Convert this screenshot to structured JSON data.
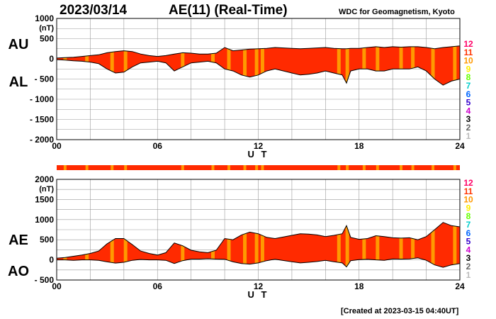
{
  "header": {
    "date": "2023/03/14",
    "index_title": "AE(11) (Real-Time)",
    "source": "WDC for Geomagnetism, Kyoto",
    "created": "[Created at 2023-03-15 04:40UT]"
  },
  "colors": {
    "fill_main": "#ff2a00",
    "fill_stripe": "#ff9900",
    "grid": "#9a9a9a",
    "line": "#000000"
  },
  "legend": {
    "items": [
      {
        "label": "12",
        "color": "#ff0066"
      },
      {
        "label": "11",
        "color": "#ff3300"
      },
      {
        "label": "10",
        "color": "#ff9900"
      },
      {
        "label": "9",
        "color": "#ffee00"
      },
      {
        "label": "8",
        "color": "#66ff00"
      },
      {
        "label": "7",
        "color": "#00cccc"
      },
      {
        "label": "6",
        "color": "#0066ff"
      },
      {
        "label": "5",
        "color": "#3300cc"
      },
      {
        "label": "4",
        "color": "#cc00cc"
      },
      {
        "label": "3",
        "color": "#000000"
      },
      {
        "label": "2",
        "color": "#666666"
      },
      {
        "label": "1",
        "color": "#bbbbbb"
      }
    ]
  },
  "chart_data": [
    {
      "type": "area",
      "series": [
        {
          "name": "AU"
        },
        {
          "name": "AL"
        }
      ],
      "side_labels": [
        "AU",
        "AL"
      ],
      "unit_label": "(nT)",
      "xlabel": "U T",
      "ylabel": "",
      "x_ticks": [
        "00",
        "06",
        "12",
        "18",
        "24"
      ],
      "y_ticks": [
        "1000",
        "500",
        "0",
        "- 500",
        "- 1000",
        "- 1500",
        "- 2000"
      ],
      "xlim": [
        0,
        24
      ],
      "ylim": [
        -2000,
        1000
      ],
      "grid": true,
      "x_hours": [
        0,
        0.5,
        1,
        1.5,
        2,
        2.5,
        3,
        3.5,
        4,
        4.5,
        5,
        5.5,
        6,
        6.5,
        7,
        7.5,
        8,
        8.5,
        9,
        9.5,
        10,
        10.5,
        11,
        11.5,
        12,
        12.5,
        13,
        13.5,
        14,
        14.5,
        15,
        15.5,
        16,
        16.5,
        17,
        17.25,
        17.5,
        18,
        18.5,
        19,
        19.5,
        20,
        20.5,
        21,
        21.5,
        22,
        22.5,
        23,
        23.5,
        24
      ],
      "au": [
        20,
        30,
        40,
        60,
        80,
        100,
        150,
        180,
        200,
        180,
        120,
        80,
        60,
        80,
        120,
        150,
        140,
        120,
        120,
        140,
        280,
        200,
        220,
        240,
        250,
        260,
        280,
        270,
        260,
        250,
        260,
        270,
        280,
        260,
        250,
        250,
        260,
        260,
        280,
        300,
        280,
        300,
        290,
        300,
        300,
        280,
        250,
        280,
        300,
        320
      ],
      "al": [
        -20,
        -30,
        -50,
        -60,
        -80,
        -120,
        -250,
        -350,
        -330,
        -200,
        -100,
        -80,
        -60,
        -100,
        -300,
        -200,
        -100,
        -80,
        -60,
        -100,
        -250,
        -300,
        -400,
        -450,
        -400,
        -300,
        -250,
        -300,
        -350,
        -400,
        -380,
        -350,
        -300,
        -350,
        -400,
        -600,
        -300,
        -250,
        -250,
        -300,
        -300,
        -250,
        -250,
        -250,
        -200,
        -300,
        -500,
        -650,
        -550,
        -500
      ],
      "stripe_hours": [
        0.5,
        1.8,
        3.3,
        4.1,
        7.5,
        9.3,
        10.25,
        11.2,
        11.9,
        12.25,
        16.8,
        17.3,
        18.3,
        19.1,
        20.5,
        21.2,
        22.4,
        23.7
      ]
    },
    {
      "type": "area",
      "series": [
        {
          "name": "AE"
        },
        {
          "name": "AO"
        }
      ],
      "side_labels": [
        "AE",
        "AO"
      ],
      "unit_label": "(nT)",
      "xlabel": "U T",
      "ylabel": "",
      "x_ticks": [
        "00",
        "06",
        "12",
        "18",
        "24"
      ],
      "y_ticks": [
        "2000",
        "1500",
        "1000",
        "500",
        "0",
        "- 500"
      ],
      "xlim": [
        0,
        24
      ],
      "ylim": [
        -500,
        2000
      ],
      "grid": true,
      "x_hours": [
        0,
        0.5,
        1,
        1.5,
        2,
        2.5,
        3,
        3.5,
        4,
        4.5,
        5,
        5.5,
        6,
        6.5,
        7,
        7.5,
        8,
        8.5,
        9,
        9.5,
        10,
        10.5,
        11,
        11.5,
        12,
        12.5,
        13,
        13.5,
        14,
        14.5,
        15,
        15.5,
        16,
        16.5,
        17,
        17.25,
        17.5,
        18,
        18.5,
        19,
        19.5,
        20,
        20.5,
        21,
        21.5,
        22,
        22.5,
        23,
        23.5,
        24
      ],
      "ae": [
        40,
        60,
        90,
        120,
        160,
        220,
        400,
        530,
        530,
        380,
        220,
        160,
        120,
        180,
        420,
        350,
        240,
        200,
        180,
        240,
        530,
        500,
        620,
        690,
        650,
        560,
        530,
        570,
        610,
        650,
        640,
        620,
        580,
        610,
        650,
        850,
        560,
        510,
        530,
        600,
        580,
        550,
        540,
        550,
        500,
        580,
        750,
        930,
        850,
        820
      ],
      "ao": [
        0,
        0,
        -10,
        0,
        0,
        -10,
        -50,
        -80,
        -60,
        -10,
        10,
        0,
        0,
        -10,
        -90,
        -20,
        20,
        20,
        30,
        20,
        15,
        -50,
        -90,
        -105,
        -75,
        -20,
        15,
        -15,
        -45,
        -75,
        -60,
        -40,
        -10,
        -45,
        -75,
        -175,
        -20,
        5,
        15,
        0,
        -10,
        25,
        20,
        25,
        50,
        -10,
        -125,
        -185,
        -125,
        -90
      ],
      "stripe_hours": [
        0.5,
        1.8,
        3.3,
        4.1,
        7.5,
        9.3,
        10.25,
        11.2,
        11.9,
        12.25,
        16.8,
        17.3,
        18.3,
        19.1,
        20.5,
        21.2,
        22.4,
        23.7
      ]
    }
  ]
}
